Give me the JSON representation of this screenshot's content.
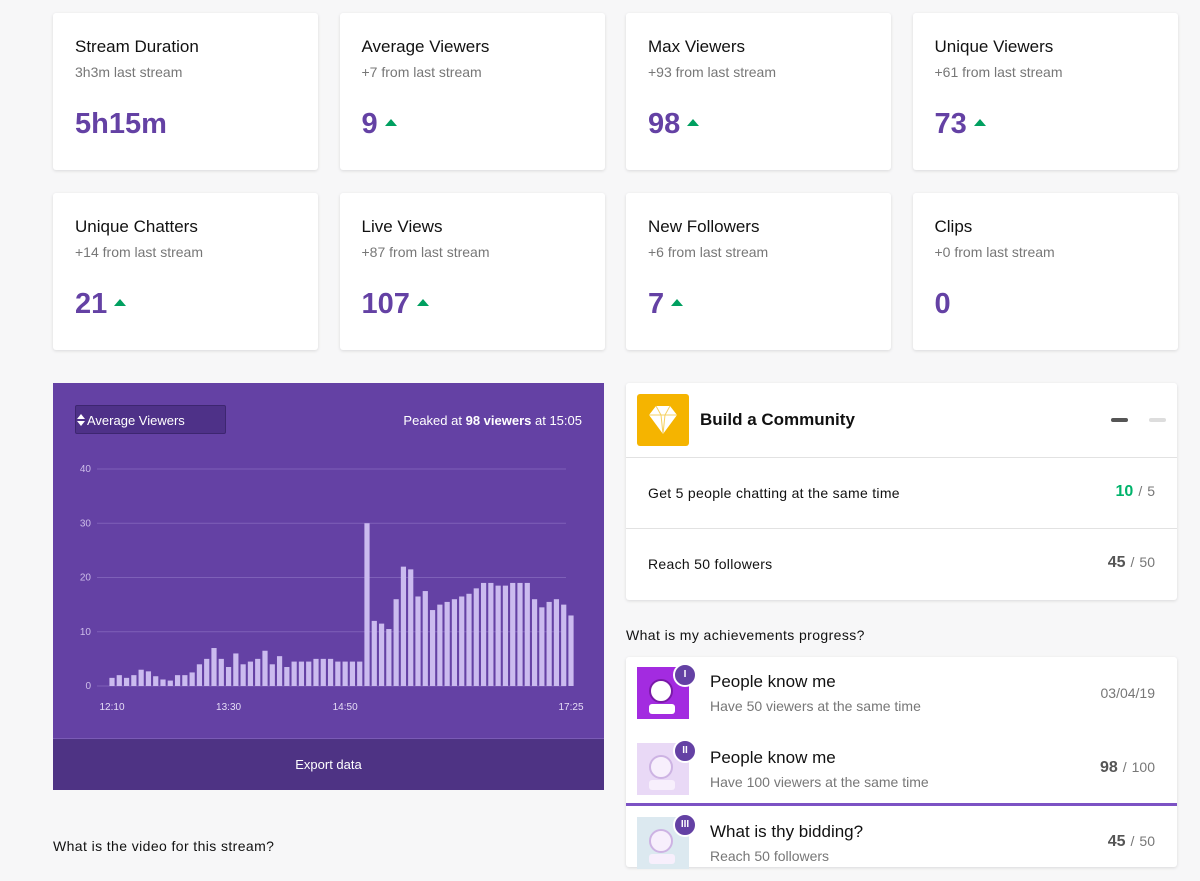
{
  "stats": [
    {
      "title": "Stream Duration",
      "subtitle": "3h3m last stream",
      "value": "5h15m"
    },
    {
      "title": "Average Viewers",
      "subtitle": "+7 from last stream",
      "value": 9,
      "trend": "up"
    },
    {
      "title": "Max Viewers",
      "subtitle": "+93 from last stream",
      "value": 98,
      "trend": "up"
    },
    {
      "title": "Unique Viewers",
      "subtitle": "+61 from last stream",
      "value": 73,
      "trend": "up"
    },
    {
      "title": "Unique Chatters",
      "subtitle": "+14 from last stream",
      "value": 21,
      "trend": "up"
    },
    {
      "title": "Live Views",
      "subtitle": "+87 from last stream",
      "value": 107,
      "trend": "up"
    },
    {
      "title": "New Followers",
      "subtitle": "+6 from last stream",
      "value": 7,
      "trend": "up"
    },
    {
      "title": "Clips",
      "subtitle": "+0 from last stream",
      "value": 0
    }
  ],
  "chart_data": {
    "type": "bar",
    "select": "Average Viewers",
    "peak_prefix": "Peaked at",
    "peak_bold": "98 viewers",
    "peak_suffix": "at 15:05",
    "export": "Export data",
    "color": "#cbbbef",
    "ylim": [
      0,
      40
    ],
    "yticks": [
      0,
      10,
      20,
      30,
      40
    ],
    "grid": true,
    "categories": [
      "12:10",
      null,
      null,
      null,
      null,
      null,
      null,
      null,
      null,
      null,
      null,
      null,
      null,
      null,
      null,
      null,
      "13:30",
      null,
      null,
      null,
      null,
      null,
      null,
      null,
      null,
      null,
      null,
      null,
      null,
      null,
      null,
      null,
      "14:50",
      null,
      null,
      null,
      null,
      null,
      null,
      null,
      null,
      null,
      null,
      null,
      null,
      null,
      null,
      null,
      null,
      null,
      null,
      null,
      null,
      null,
      null,
      null,
      null,
      null,
      null,
      null,
      null,
      null,
      null,
      "17:25"
    ],
    "values": [
      1.5,
      2,
      1.5,
      2,
      3,
      2.7,
      1.8,
      1.2,
      1,
      2,
      2,
      2.5,
      4,
      5,
      7,
      5,
      3.5,
      6,
      4,
      4.5,
      5,
      6.5,
      4,
      5.5,
      3.5,
      4.5,
      4.5,
      4.5,
      5,
      5,
      5,
      4.5,
      4.5,
      4.5,
      4.5,
      30,
      12,
      11.5,
      10.5,
      16,
      22,
      21.5,
      16.5,
      17.5,
      14,
      15,
      15.5,
      16,
      16.5,
      17,
      18,
      19,
      19,
      18.5,
      18.5,
      19,
      19,
      19,
      16,
      14.5,
      15.5,
      16,
      15,
      13
    ]
  },
  "community": {
    "title": "Build a Community",
    "separator": "/",
    "tasks": [
      {
        "label": "Get 5 people chatting at the same time",
        "value": 10,
        "target": 5,
        "color": "#00b36b"
      },
      {
        "label": "Reach 50 followers",
        "value": 45,
        "target": 50,
        "color": "#555555"
      }
    ]
  },
  "achievements": {
    "heading": "What is my achievements progress?",
    "separator": "/",
    "items": [
      {
        "badge": "I",
        "title": "People know me",
        "desc": "Have 50 viewers at the same time",
        "date": "03/04/19"
      },
      {
        "badge": "II",
        "title": "People know me",
        "desc": "Have 100 viewers at the same time",
        "value": 98,
        "target": 100
      },
      {
        "badge": "III",
        "title": "What is thy bidding?",
        "desc": "Reach 50 followers",
        "value": 45,
        "target": 50
      }
    ]
  },
  "video_heading": "What is the video for this stream?"
}
